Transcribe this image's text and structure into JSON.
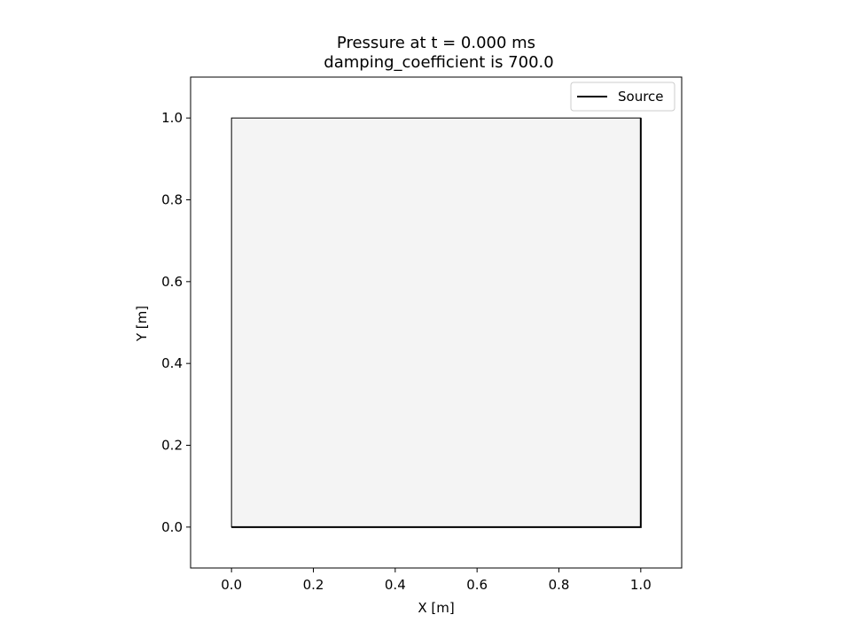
{
  "chart_data": {
    "type": "line",
    "title": "Pressure at t = 0.000 ms",
    "subtitle": "damping_coefficient is 700.0",
    "xlabel": "X [m]",
    "ylabel": "Y [m]",
    "xlim": [
      -0.1,
      1.1
    ],
    "ylim": [
      -0.1,
      1.1
    ],
    "xticks": [
      0.0,
      0.2,
      0.4,
      0.6,
      0.8,
      1.0
    ],
    "yticks": [
      0.0,
      0.2,
      0.4,
      0.6,
      0.8,
      1.0
    ],
    "xtick_labels": [
      "0.0",
      "0.2",
      "0.4",
      "0.6",
      "0.8",
      "1.0"
    ],
    "ytick_labels": [
      "0.0",
      "0.2",
      "0.4",
      "0.6",
      "0.8",
      "1.0"
    ],
    "domain": {
      "x": [
        0.0,
        1.0
      ],
      "y": [
        0.0,
        1.0
      ],
      "fill_color": "#f4f4f4",
      "edge_color": "#000000"
    },
    "series": [
      {
        "name": "Source",
        "color": "#000000",
        "x": [
          0.0,
          1.0,
          1.0
        ],
        "y": [
          0.0,
          0.0,
          1.0
        ]
      }
    ],
    "legend": {
      "location": "top-right",
      "entries": [
        "Source"
      ]
    },
    "grid": false
  }
}
